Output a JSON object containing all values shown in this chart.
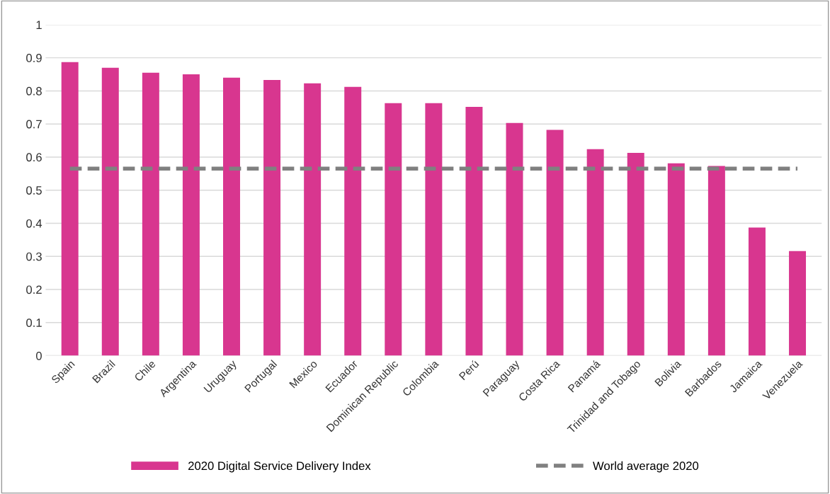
{
  "chart_data": {
    "type": "bar",
    "categories": [
      "Spain",
      "Brazil",
      "Chile",
      "Argentina",
      "Uruguay",
      "Portugal",
      "Mexico",
      "Ecuador",
      "Dominican Republic",
      "Colombia",
      "Perú",
      "Paraguay",
      "Costa Rica",
      "Panamá",
      "Trinidad and Tobago",
      "Bolivia",
      "Barbados",
      "Jamaica",
      "Venezuela"
    ],
    "series": [
      {
        "name": "2020 Digital Service Delivery Index",
        "color": "#d8368f",
        "values": [
          0.887,
          0.87,
          0.855,
          0.85,
          0.84,
          0.833,
          0.823,
          0.812,
          0.763,
          0.763,
          0.752,
          0.703,
          0.682,
          0.624,
          0.613,
          0.581,
          0.573,
          0.387,
          0.316
        ]
      },
      {
        "name": "World average 2020",
        "type": "line",
        "line_style": "dashed",
        "color": "#808080",
        "values": [
          0.565,
          0.565,
          0.565,
          0.565,
          0.565,
          0.565,
          0.565,
          0.565,
          0.565,
          0.565,
          0.565,
          0.565,
          0.565,
          0.565,
          0.565,
          0.565,
          0.565,
          0.565,
          0.565
        ]
      }
    ],
    "ylim": [
      0,
      1
    ],
    "yticks": [
      0,
      {
        "value": 0.1,
        "label": "0.1"
      },
      {
        "value": 0.2,
        "label": "0.2"
      },
      {
        "value": 0.3,
        "label": "0.3"
      },
      {
        "value": 0.4,
        "label": "0.4"
      },
      0.5,
      0.6,
      0.7,
      0.8,
      0.9,
      1
    ],
    "grid": "y",
    "legend": "bottom"
  }
}
